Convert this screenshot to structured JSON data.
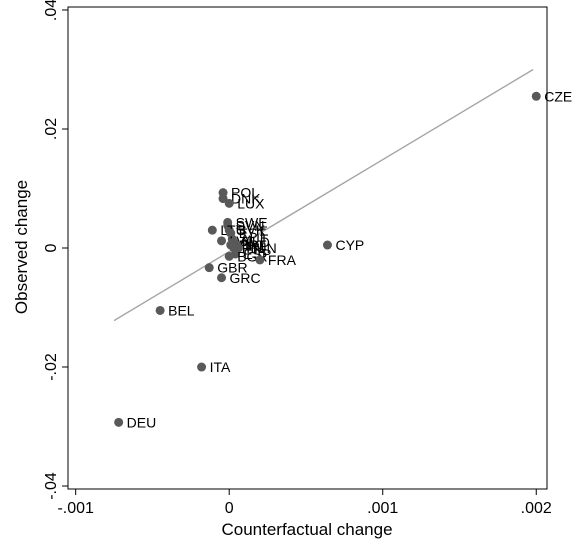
{
  "chart_data": {
    "type": "scatter",
    "title": "",
    "xlabel": "Counterfactual change",
    "ylabel": "Observed change",
    "xlim": [
      -0.00105,
      0.00207
    ],
    "ylim": [
      -0.0405,
      0.0405
    ],
    "x_ticks": [
      -0.001,
      0,
      0.001,
      0.002
    ],
    "x_tick_labels": [
      "-.001",
      "0",
      ".001",
      ".002"
    ],
    "y_ticks": [
      -0.04,
      -0.02,
      0,
      0.02,
      0.04
    ],
    "y_tick_labels": [
      "-.04",
      "-.02",
      "0",
      ".02",
      ".04"
    ],
    "grid": false,
    "marker_color": "#595959",
    "fit_line_color": "#a6a6a6",
    "points": [
      {
        "label": "CZE",
        "x": 0.002,
        "y": 0.0255
      },
      {
        "label": "CYP",
        "x": 0.00064,
        "y": 0.0005
      },
      {
        "label": "POL",
        "x": -4e-05,
        "y": 0.0093
      },
      {
        "label": "DNK",
        "x": -4e-05,
        "y": 0.0083
      },
      {
        "label": "LUX",
        "x": 0.0,
        "y": 0.0075
      },
      {
        "label": "SWE",
        "x": -1e-05,
        "y": 0.0043
      },
      {
        "label": "SVN",
        "x": -1e-05,
        "y": 0.0038
      },
      {
        "label": "SVK",
        "x": 0.0,
        "y": 0.003
      },
      {
        "label": "LTU",
        "x": -0.00011,
        "y": 0.003
      },
      {
        "label": "EST",
        "x": 1e-05,
        "y": 0.0025
      },
      {
        "label": "AUT",
        "x": 2e-05,
        "y": 0.0015
      },
      {
        "label": "LVA",
        "x": -5e-05,
        "y": 0.0012
      },
      {
        "label": "NLD",
        "x": 3e-05,
        "y": 0.001
      },
      {
        "label": "PRT",
        "x": 1e-05,
        "y": 0.0005
      },
      {
        "label": "IRL",
        "x": 5e-05,
        "y": 0.0005
      },
      {
        "label": "FIN",
        "x": 3e-05,
        "y": 0.0
      },
      {
        "label": "HUN",
        "x": 6e-05,
        "y": 0.0
      },
      {
        "label": "ESP",
        "x": 4e-05,
        "y": -0.001
      },
      {
        "label": "BGR",
        "x": 0.0,
        "y": -0.0014
      },
      {
        "label": "FRA",
        "x": 0.0002,
        "y": -0.002
      },
      {
        "label": "GBR",
        "x": -0.00013,
        "y": -0.0033
      },
      {
        "label": "GRC",
        "x": -5e-05,
        "y": -0.005
      },
      {
        "label": "BEL",
        "x": -0.00045,
        "y": -0.0105
      },
      {
        "label": "ITA",
        "x": -0.00018,
        "y": -0.02
      },
      {
        "label": "DEU",
        "x": -0.00072,
        "y": -0.0293
      }
    ],
    "fit_line": {
      "x": [
        -0.00075,
        0.00198
      ],
      "y": [
        -0.0122,
        0.03
      ]
    }
  }
}
